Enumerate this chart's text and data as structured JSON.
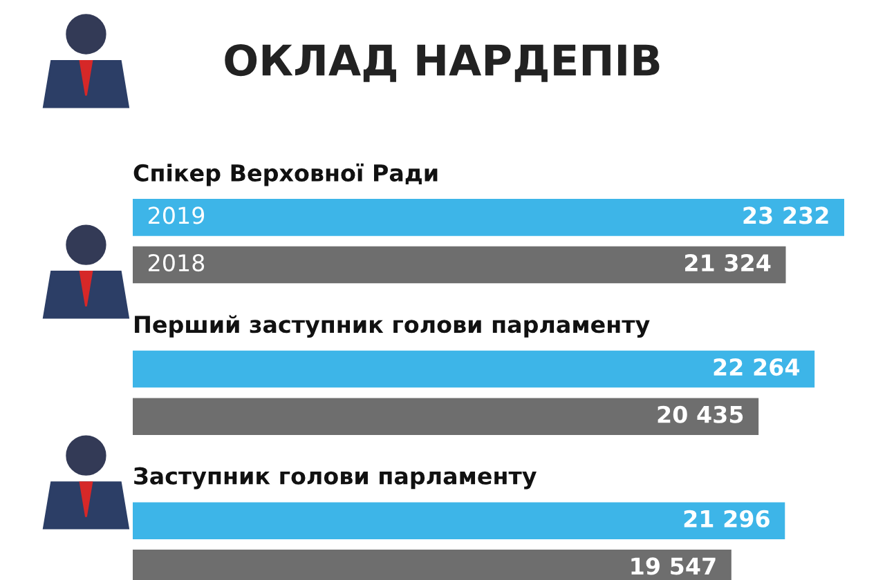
{
  "chart_data": {
    "type": "bar",
    "orientation": "horizontal",
    "title": "ОКЛАД НАРДЕПІВ",
    "categories": [
      "Спікер Верховної Ради",
      "Перший заступник голови парламенту",
      "Заступник голови парламенту"
    ],
    "series": [
      {
        "name": "2019",
        "color": "#3db5e8",
        "values": [
          23232,
          22264,
          21296
        ],
        "value_labels": [
          "23 232",
          "22 264",
          "21 296"
        ]
      },
      {
        "name": "2018",
        "color": "#6e6e6e",
        "values": [
          21324,
          20435,
          19547
        ],
        "value_labels": [
          "21 324",
          "20 435",
          "19 547"
        ]
      }
    ],
    "legend": false
  }
}
